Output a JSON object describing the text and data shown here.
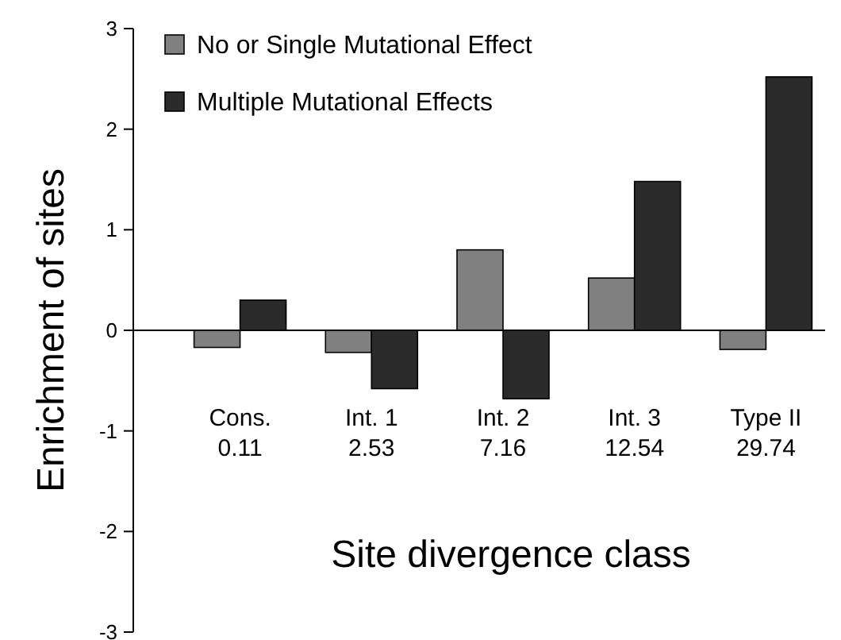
{
  "chart_data": {
    "type": "bar",
    "xlabel": "Site divergence class",
    "ylabel": "Enrichment of sites",
    "categories": [
      "Cons.\n0.11",
      "Int. 1\n2.53",
      "Int. 2\n7.16",
      "Int. 3\n12.54",
      "Type II\n29.74"
    ],
    "series": [
      {
        "name": "No or Single Mutational Effect",
        "color": "#808080",
        "values": [
          -0.17,
          -0.22,
          0.8,
          0.52,
          -0.19
        ]
      },
      {
        "name": "Multiple Mutational Effects",
        "color": "#2b2b2b",
        "values": [
          0.3,
          -0.58,
          -0.68,
          1.48,
          2.52
        ]
      }
    ],
    "ylim": [
      -3,
      3
    ],
    "yticks": [
      -3,
      -2,
      -1,
      0,
      1,
      2,
      3
    ],
    "legend": "top left"
  }
}
